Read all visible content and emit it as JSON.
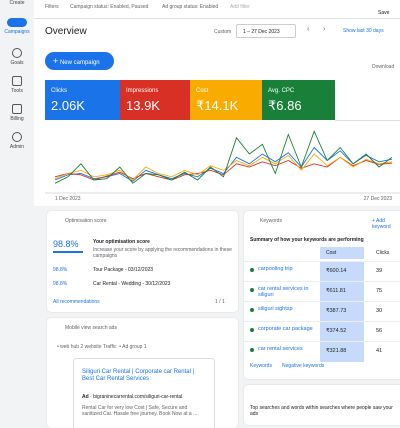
{
  "sidebar": [
    "Create",
    "Campaigns",
    "Goals",
    "Tools",
    "Billing",
    "Admin"
  ],
  "filters": {
    "label": "Filters",
    "chips": [
      "Campaign status: Enabled, Paused",
      "Ad group status: Enabled"
    ],
    "add": "Add filter"
  },
  "save": "Save",
  "header": {
    "title": "Overview",
    "range_label": "Custom",
    "date_range": "1 – 27 Dec 2023",
    "shortcut": "Show last 30 days"
  },
  "new_campaign": "New campaign",
  "download": "Download",
  "chart_data": {
    "type": "line",
    "categories": [
      "1 Dec 2023",
      null,
      null,
      null,
      null,
      null,
      null,
      null,
      null,
      null,
      null,
      null,
      null,
      null,
      null,
      null,
      null,
      null,
      null,
      null,
      null,
      null,
      null,
      null,
      null,
      null,
      "27 Dec 2023"
    ],
    "ylim": [
      0,
      100
    ],
    "series": [
      {
        "name": "Clicks",
        "total": "2.06K",
        "color": "#1a73e8",
        "values": [
          20,
          28,
          30,
          22,
          25,
          30,
          18,
          35,
          28,
          22,
          30,
          25,
          38,
          30,
          55,
          45,
          60,
          48,
          62,
          40,
          70,
          50,
          65,
          45,
          58,
          48,
          52
        ]
      },
      {
        "name": "Impressions",
        "total": "13.9K",
        "color": "#d93025",
        "values": [
          25,
          30,
          28,
          20,
          26,
          32,
          22,
          30,
          25,
          20,
          28,
          30,
          35,
          28,
          45,
          40,
          48,
          42,
          50,
          38,
          45,
          40,
          55,
          42,
          50,
          44,
          46
        ]
      },
      {
        "name": "Cost",
        "total": "₹14.1K",
        "color": "#f9ab00",
        "values": [
          22,
          30,
          35,
          25,
          28,
          35,
          20,
          40,
          30,
          25,
          35,
          28,
          42,
          35,
          50,
          42,
          55,
          45,
          58,
          35,
          60,
          42,
          55,
          40,
          52,
          45,
          48
        ]
      },
      {
        "name": "Avg. CPC",
        "total": "₹6.86",
        "color": "#188038",
        "values": [
          15,
          25,
          45,
          20,
          22,
          40,
          15,
          30,
          28,
          20,
          32,
          20,
          40,
          25,
          85,
          60,
          75,
          30,
          90,
          40,
          95,
          50,
          70,
          45,
          60,
          40,
          55
        ]
      }
    ]
  },
  "optimisation": {
    "title": "Optimisation score",
    "score": "98.8%",
    "heading": "Your optimisation score",
    "description": "Increase your score by applying the recommendations in these campaigns",
    "rows": [
      [
        "98.8%",
        "Tour Package - 03/12/2023"
      ],
      [
        "98.8%",
        "Car Rental - Wedding - 30/12/2023"
      ]
    ],
    "link": "All recommendations",
    "pager": "1 / 1"
  },
  "ads": {
    "title": "Mobile view search ads",
    "campaign": "web hub 2 website Traffic",
    "ad_group": "Ad group 1",
    "headline": "Siliguri Car Rental | Corporate car Rental | Best Car Rental Services",
    "ad_label": "Ad",
    "url": "bigraninecarrental.com/siliguri-car-rental",
    "description": "Rental Car for very low Cost | Safe, Secure and sanitized Car. Hassle free journey. Book Now at a ..."
  },
  "keywords": {
    "title": "Keywords",
    "add": "Add keyword",
    "summary": "Summary of how your keywords are performing",
    "columns": [
      "Cost",
      "Clicks"
    ],
    "rows": [
      [
        "carpooling trip",
        "₹600.14",
        "39"
      ],
      [
        "car rental services in siliguri",
        "₹611.81",
        "75"
      ],
      [
        "siliguri sightsp",
        "₹387.73",
        "30"
      ],
      [
        "corporate car package",
        "₹374.52",
        "56"
      ],
      [
        "car rental services",
        "₹321.88",
        "41"
      ]
    ],
    "tabs": [
      "Keywords",
      "Negative keywords"
    ]
  },
  "searches": {
    "title": "Top searches and words within searches where people saw your ads"
  }
}
